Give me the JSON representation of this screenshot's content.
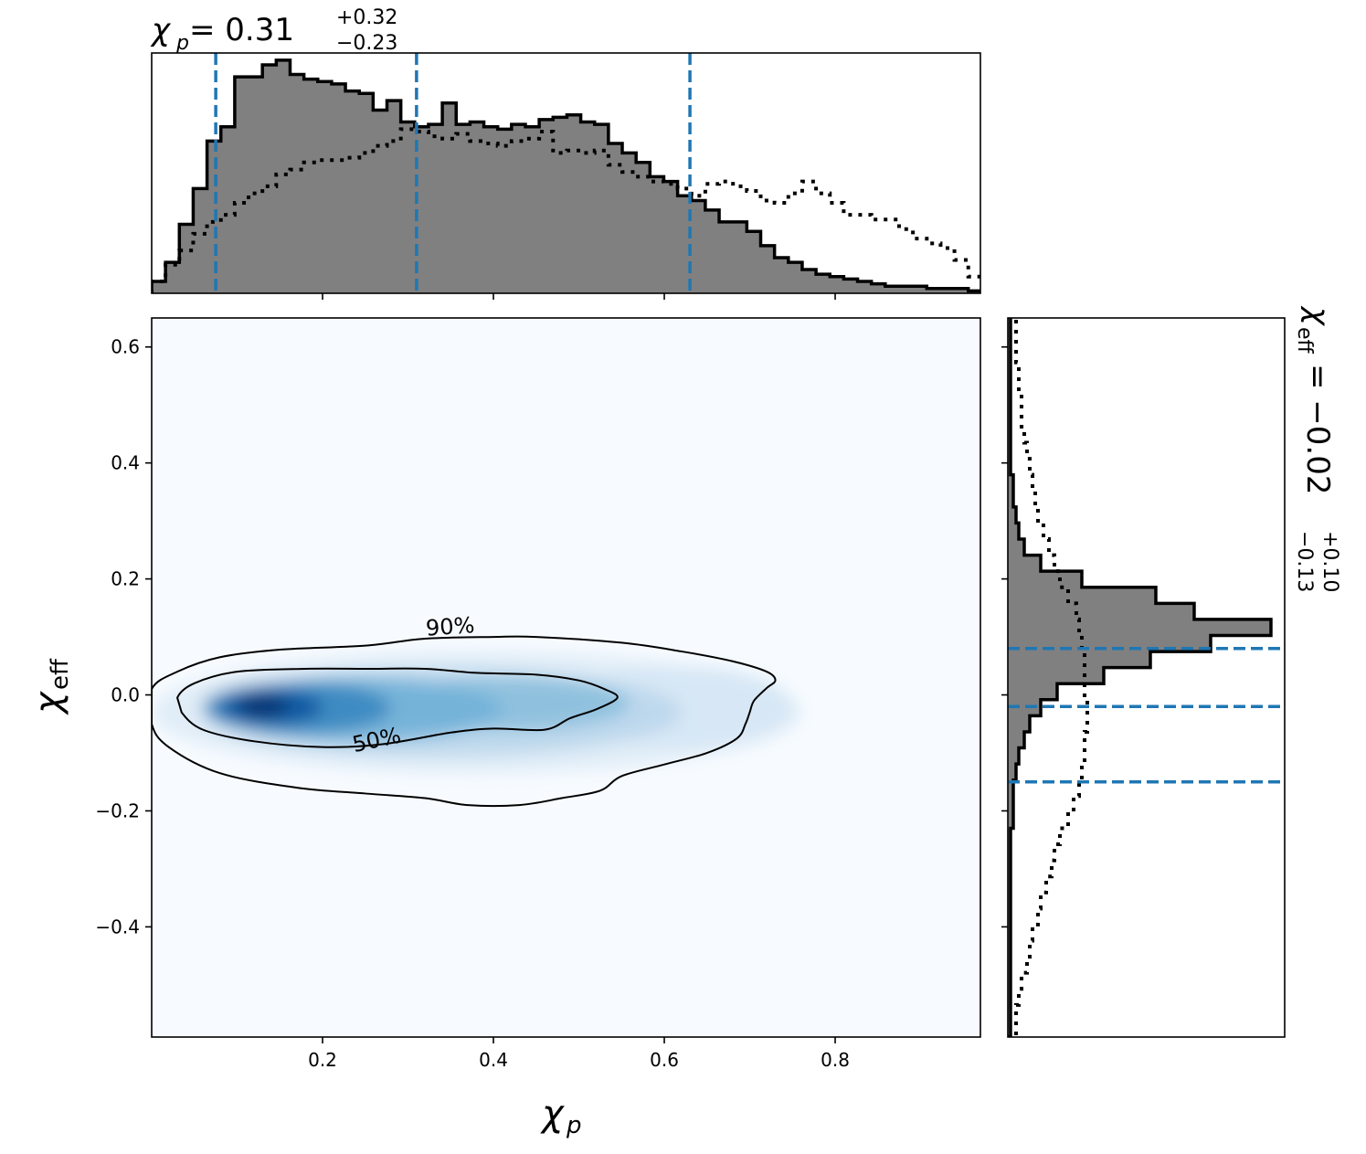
{
  "chart_data": {
    "type": "joint-posterior",
    "colors": {
      "density_high": "#08306b",
      "density_low": "#f7fbff",
      "credible_line": "#1f77b4",
      "histogram_fill": "#808080",
      "histogram_edge": "#000000",
      "contour": "#000000"
    },
    "joint": {
      "type": "heatmap",
      "xlabel": "χ",
      "xlabel_sub": "p",
      "ylabel": "χ",
      "ylabel_sub": "eff",
      "xlim": [
        0.0,
        0.97
      ],
      "ylim": [
        -0.59,
        0.65
      ],
      "xticks": [
        0.2,
        0.4,
        0.6,
        0.8
      ],
      "xtick_labels": [
        "0.2",
        "0.4",
        "0.6",
        "0.8"
      ],
      "yticks": [
        0.6,
        0.4,
        0.2,
        0.0,
        -0.2,
        -0.4
      ],
      "ytick_labels": [
        "0.6",
        "0.4",
        "0.2",
        "0.0",
        "−0.2",
        "−0.4"
      ],
      "density_peak": {
        "x": 0.13,
        "y": -0.02
      },
      "contours": [
        {
          "level": "90%",
          "points": [
            [
              0.0,
              0.01
            ],
            [
              0.03,
              0.04
            ],
            [
              0.08,
              0.065
            ],
            [
              0.15,
              0.078
            ],
            [
              0.25,
              0.085
            ],
            [
              0.32,
              0.097
            ],
            [
              0.4,
              0.1
            ],
            [
              0.45,
              0.1
            ],
            [
              0.55,
              0.09
            ],
            [
              0.62,
              0.075
            ],
            [
              0.68,
              0.058
            ],
            [
              0.72,
              0.04
            ],
            [
              0.73,
              0.025
            ],
            [
              0.72,
              0.012
            ],
            [
              0.705,
              -0.01
            ],
            [
              0.7,
              -0.03
            ],
            [
              0.695,
              -0.05
            ],
            [
              0.685,
              -0.075
            ],
            [
              0.65,
              -0.1
            ],
            [
              0.6,
              -0.12
            ],
            [
              0.55,
              -0.14
            ],
            [
              0.525,
              -0.165
            ],
            [
              0.48,
              -0.178
            ],
            [
              0.43,
              -0.19
            ],
            [
              0.37,
              -0.19
            ],
            [
              0.32,
              -0.178
            ],
            [
              0.25,
              -0.17
            ],
            [
              0.17,
              -0.16
            ],
            [
              0.08,
              -0.135
            ],
            [
              0.02,
              -0.09
            ],
            [
              0.0,
              -0.05
            ]
          ]
        },
        {
          "level": "50%",
          "points": [
            [
              0.03,
              -0.005
            ],
            [
              0.05,
              0.02
            ],
            [
              0.1,
              0.04
            ],
            [
              0.18,
              0.045
            ],
            [
              0.25,
              0.045
            ],
            [
              0.32,
              0.045
            ],
            [
              0.38,
              0.038
            ],
            [
              0.45,
              0.035
            ],
            [
              0.5,
              0.025
            ],
            [
              0.53,
              0.01
            ],
            [
              0.545,
              -0.005
            ],
            [
              0.52,
              -0.025
            ],
            [
              0.49,
              -0.04
            ],
            [
              0.46,
              -0.06
            ],
            [
              0.4,
              -0.058
            ],
            [
              0.35,
              -0.065
            ],
            [
              0.27,
              -0.085
            ],
            [
              0.2,
              -0.09
            ],
            [
              0.12,
              -0.08
            ],
            [
              0.06,
              -0.06
            ],
            [
              0.035,
              -0.03
            ]
          ]
        }
      ],
      "contour_labels": [
        {
          "text": "90%",
          "x": 0.35,
          "y": 0.105,
          "angle": -4
        },
        {
          "text": "50%",
          "x": 0.265,
          "y": -0.09,
          "angle": -12
        }
      ]
    },
    "marginal_x": {
      "type": "histogram",
      "title_symbol": "χ",
      "title_sub": "p",
      "title_value": " = 0.31",
      "title_sup": "+0.32",
      "title_low": "−0.23",
      "median": 0.31,
      "lower": 0.075,
      "upper": 0.63,
      "bin_edges_start": 0.0,
      "bin_width": 0.0162,
      "counts": [
        0.05,
        0.13,
        0.29,
        0.44,
        0.64,
        0.7,
        0.91,
        0.91,
        0.96,
        0.98,
        0.92,
        0.9,
        0.89,
        0.88,
        0.85,
        0.84,
        0.77,
        0.81,
        0.72,
        0.7,
        0.71,
        0.8,
        0.71,
        0.72,
        0.7,
        0.69,
        0.71,
        0.7,
        0.73,
        0.74,
        0.75,
        0.72,
        0.71,
        0.63,
        0.59,
        0.55,
        0.49,
        0.47,
        0.41,
        0.39,
        0.35,
        0.3,
        0.3,
        0.26,
        0.2,
        0.15,
        0.13,
        0.1,
        0.08,
        0.07,
        0.06,
        0.05,
        0.04,
        0.03,
        0.03,
        0.03,
        0.02,
        0.02,
        0.02,
        0.01
      ],
      "prior": [
        0.05,
        0.12,
        0.18,
        0.25,
        0.3,
        0.33,
        0.38,
        0.42,
        0.45,
        0.5,
        0.52,
        0.55,
        0.56,
        0.56,
        0.57,
        0.59,
        0.62,
        0.64,
        0.69,
        0.68,
        0.66,
        0.65,
        0.67,
        0.64,
        0.63,
        0.62,
        0.64,
        0.65,
        0.68,
        0.59,
        0.6,
        0.59,
        0.6,
        0.54,
        0.51,
        0.49,
        0.47,
        0.46,
        0.44,
        0.41,
        0.46,
        0.47,
        0.45,
        0.43,
        0.39,
        0.38,
        0.42,
        0.47,
        0.42,
        0.38,
        0.33,
        0.33,
        0.31,
        0.31,
        0.27,
        0.23,
        0.21,
        0.19,
        0.14,
        0.07
      ]
    },
    "marginal_y": {
      "type": "histogram",
      "orientation": "horizontal",
      "title_symbol": "χ",
      "title_sub": "eff",
      "title_value": " = −0.02",
      "title_sup": "+0.10",
      "title_low": "−0.13",
      "median": -0.02,
      "lower": -0.15,
      "upper": 0.08,
      "bin_edges_start": -0.59,
      "bin_width": 0.0277,
      "counts": [
        0.01,
        0.01,
        0.01,
        0.01,
        0.01,
        0.01,
        0.01,
        0.01,
        0.01,
        0.01,
        0.01,
        0.01,
        0.01,
        0.02,
        0.02,
        0.02,
        0.03,
        0.04,
        0.06,
        0.08,
        0.12,
        0.18,
        0.35,
        0.52,
        0.74,
        0.96,
        0.68,
        0.54,
        0.27,
        0.12,
        0.06,
        0.04,
        0.03,
        0.02,
        0.02,
        0.01,
        0.01,
        0.01,
        0.01,
        0.01,
        0.01,
        0.01,
        0.01,
        0.01,
        0.01
      ],
      "prior": [
        0.03,
        0.03,
        0.04,
        0.05,
        0.07,
        0.08,
        0.09,
        0.11,
        0.12,
        0.14,
        0.16,
        0.17,
        0.19,
        0.22,
        0.24,
        0.26,
        0.27,
        0.28,
        0.28,
        0.29,
        0.29,
        0.28,
        0.28,
        0.28,
        0.27,
        0.26,
        0.25,
        0.22,
        0.19,
        0.17,
        0.15,
        0.13,
        0.11,
        0.1,
        0.09,
        0.08,
        0.07,
        0.06,
        0.05,
        0.05,
        0.04,
        0.04,
        0.03,
        0.03,
        0.03
      ]
    }
  }
}
